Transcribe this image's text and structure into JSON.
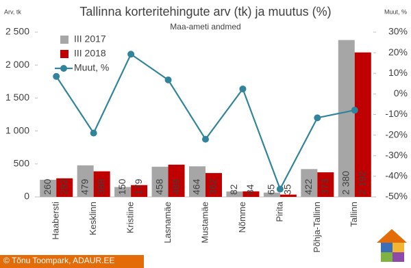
{
  "chart_data": {
    "type": "bar",
    "title": "Tallinna korteritehingute arv (tk) ja muutus (%)",
    "subtitle": "Maa-ameti andmed",
    "y_label": "Arv, tk",
    "y2_label": "Muut, %",
    "footer": "© Tõnu Toompark, ADAUR.EE",
    "categories": [
      "Haabersti",
      "Kesklinn",
      "Kristiine",
      "Lasnamäe",
      "Mustamäe",
      "Nõmme",
      "Pirita",
      "Põhja-Tallinn",
      "Tallinn"
    ],
    "series": [
      {
        "name": "III 2017",
        "color": "#a6a6a6",
        "values": [
          260,
          479,
          150,
          458,
          464,
          82,
          65,
          422,
          2380
        ],
        "value_labels": [
          "260",
          "479",
          "150",
          "458",
          "464",
          "82",
          "65",
          "422",
          "2 380"
        ]
      },
      {
        "name": "III 2018",
        "color": "#c00000",
        "values": [
          282,
          388,
          179,
          489,
          362,
          84,
          35,
          373,
          2192
        ],
        "value_labels": [
          "282",
          "388",
          "179",
          "489",
          "362",
          "84",
          "35",
          "373",
          "2 192"
        ]
      },
      {
        "name": "Muut, %",
        "color": "#31849b",
        "type": "line",
        "axis": "y2",
        "values": [
          8.5,
          -19.0,
          19.3,
          6.8,
          -22.0,
          2.4,
          -46.2,
          -11.6,
          -7.9
        ]
      }
    ],
    "ylim": [
      0,
      2500
    ],
    "yticks": [
      0,
      500,
      {
        "value": 1000,
        "label": "1 000"
      },
      {
        "value": 1500,
        "label": "1 500"
      },
      {
        "value": 2000,
        "label": "2 000"
      },
      {
        "value": 2500,
        "label": "2 500"
      }
    ],
    "y2lim": [
      -50,
      30
    ],
    "y2ticks": [
      {
        "value": -50,
        "label": "-50%"
      },
      {
        "value": -40,
        "label": "-40%"
      },
      {
        "value": -30,
        "label": "-30%"
      },
      {
        "value": -20,
        "label": "-20%"
      },
      {
        "value": -10,
        "label": "-10%"
      },
      {
        "value": 0,
        "label": "0%"
      },
      {
        "value": 10,
        "label": "10%"
      },
      {
        "value": 20,
        "label": "20%"
      },
      {
        "value": 30,
        "label": "30%"
      }
    ]
  }
}
